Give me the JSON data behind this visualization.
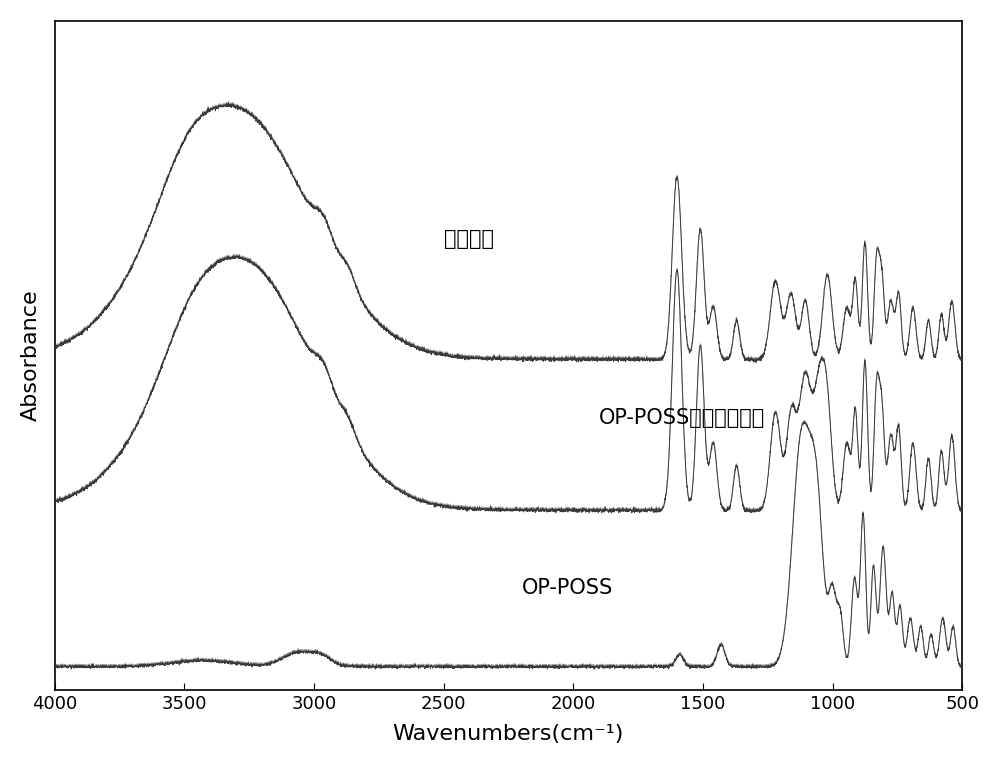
{
  "title": "",
  "xlabel": "Wavenumbers(cm⁻¹)",
  "ylabel": "Absorbance",
  "xlim": [
    4000,
    500
  ],
  "xticks": [
    4000,
    3500,
    3000,
    2500,
    2000,
    1500,
    1000,
    500
  ],
  "background_color": "#ffffff",
  "line_color_dark": "#3a3a3a",
  "line_color_light": "#9b8fa0",
  "labels": [
    "酥醉树脂",
    "OP-POSS杠化酥醉树脂",
    "OP-POSS"
  ],
  "offsets": [
    0.68,
    0.34,
    0.0
  ],
  "label_fontsize": 15,
  "axis_fontsize": 16,
  "tick_fontsize": 13,
  "noise_level": 0.002,
  "lw": 0.7
}
